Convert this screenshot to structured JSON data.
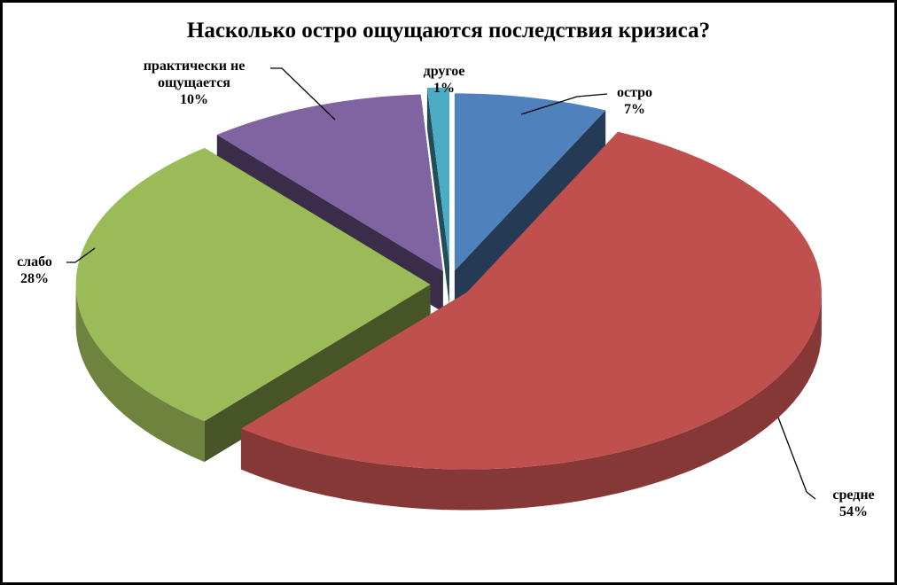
{
  "chart_data": {
    "type": "pie",
    "title": "Насколько остро ощущаются последствия кризиса?",
    "categories": [
      "остро",
      "средне",
      "слабо",
      "практически не ощущается",
      "другое"
    ],
    "values": [
      7,
      54,
      28,
      10,
      1
    ],
    "value_labels": [
      "7%",
      "54%",
      "28%",
      "10%",
      "1%"
    ],
    "colors": [
      "#4f81bd",
      "#c0504d",
      "#9bbb59",
      "#8064a2",
      "#4bacc6"
    ]
  }
}
